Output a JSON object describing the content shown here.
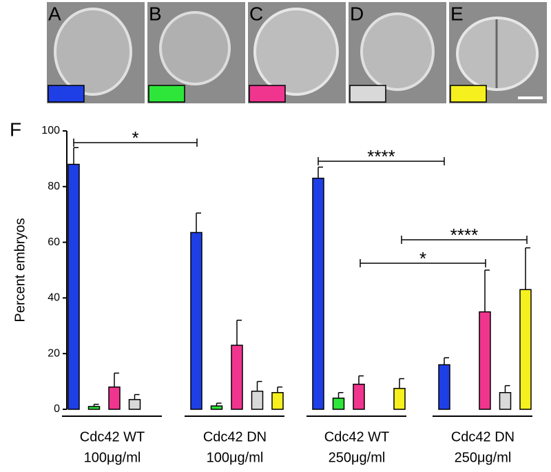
{
  "chart_data": {
    "type": "bar",
    "panel_label": "F",
    "y_label": "Percent embryos",
    "categories": [
      [
        "Cdc42 WT",
        "100μg/ml"
      ],
      [
        "Cdc42 DN",
        "100μg/ml"
      ],
      [
        "Cdc42 WT",
        "250μg/ml"
      ],
      [
        "Cdc42 DN",
        "250μg/ml"
      ]
    ],
    "series": [
      {
        "name": "A",
        "color": "#1f3fe6",
        "values": [
          88,
          63.5,
          83,
          16
        ],
        "errors": [
          6,
          7,
          4,
          2.5
        ]
      },
      {
        "name": "B",
        "color": "#2ee63a",
        "values": [
          1,
          1.2,
          4,
          0
        ],
        "errors": [
          0.8,
          1,
          2,
          0
        ]
      },
      {
        "name": "C",
        "color": "#f0358f",
        "values": [
          8,
          23,
          9,
          35
        ],
        "errors": [
          5,
          9,
          3,
          15
        ]
      },
      {
        "name": "D",
        "color": "#d9d9d9",
        "values": [
          3.5,
          6.5,
          0,
          6
        ],
        "errors": [
          1.8,
          3.5,
          0,
          2.5
        ]
      },
      {
        "name": "E",
        "color": "#f5f01e",
        "values": [
          0,
          6,
          7.5,
          43
        ],
        "errors": [
          0,
          2,
          3.5,
          15
        ]
      }
    ],
    "ylim": [
      0,
      100
    ],
    "yticks": [
      0,
      20,
      40,
      60,
      80,
      100
    ],
    "annotations": [
      "*",
      "****",
      "****",
      "*"
    ]
  }
}
